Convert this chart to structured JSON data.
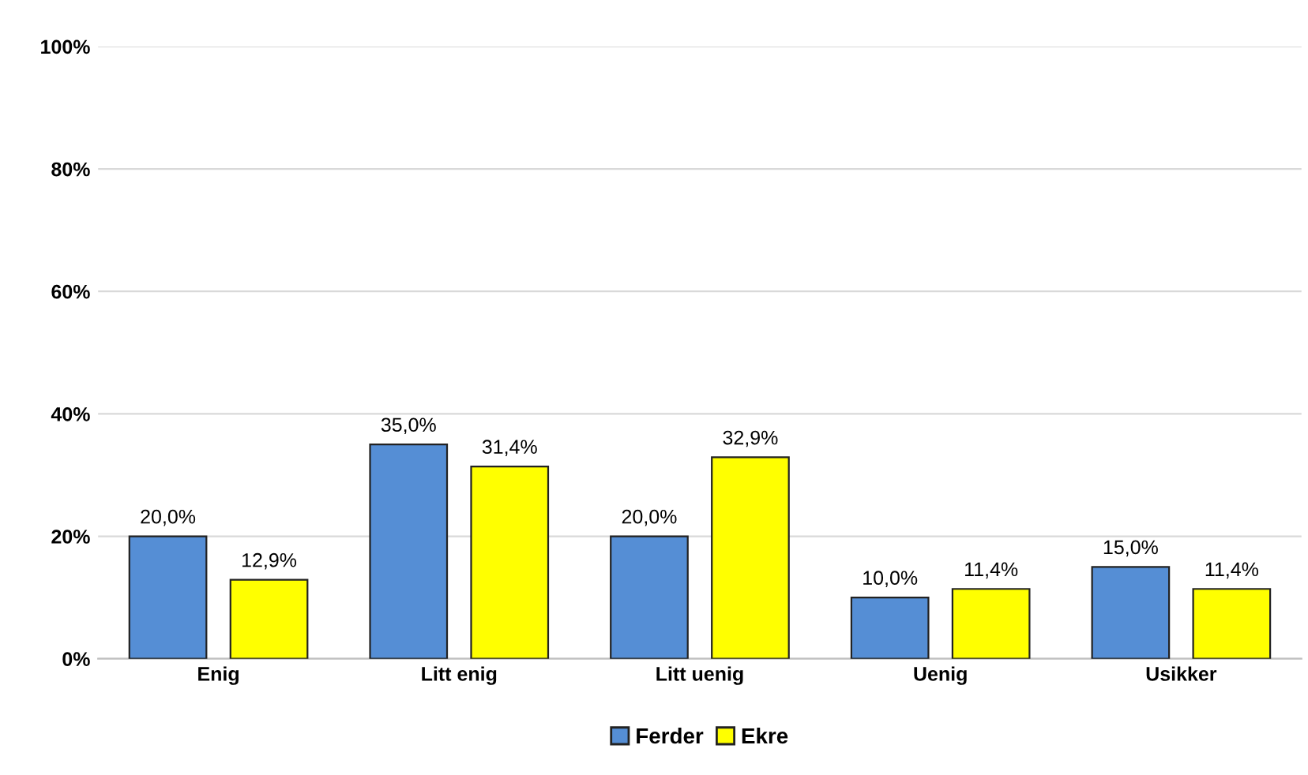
{
  "chart_data": {
    "type": "bar",
    "categories": [
      "Enig",
      "Litt enig",
      "Litt uenig",
      "Uenig",
      "Usikker"
    ],
    "series": [
      {
        "name": "Ferder",
        "color": "#558ed5",
        "values": [
          20.0,
          35.0,
          20.0,
          10.0,
          15.0
        ],
        "value_labels": [
          "20,0%",
          "35,0%",
          "20,0%",
          "10,0%",
          "15,0%"
        ]
      },
      {
        "name": "Ekre",
        "color": "#ffff00",
        "values": [
          12.9,
          31.4,
          32.9,
          11.4,
          11.4
        ],
        "value_labels": [
          "12,9%",
          "31,4%",
          "32,9%",
          "11,4%",
          "11,4%"
        ]
      }
    ],
    "ylim": [
      0,
      100
    ],
    "yticks": [
      {
        "value": 0,
        "label": "0%"
      },
      {
        "value": 20,
        "label": "20%"
      },
      {
        "value": 40,
        "label": "40%"
      },
      {
        "value": 60,
        "label": "60%"
      },
      {
        "value": 80,
        "label": "80%"
      },
      {
        "value": 100,
        "label": "100%"
      }
    ],
    "grid": "y",
    "legend": "bottom"
  }
}
